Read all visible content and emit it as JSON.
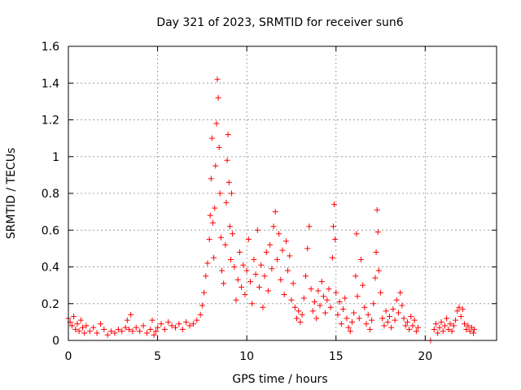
{
  "chart_data": {
    "type": "scatter",
    "title": "Day 321 of 2023, SRMTID for receiver sun6",
    "xlabel": "GPS time / hours",
    "ylabel": "SRMTID / TECUs",
    "xlim": [
      0,
      24
    ],
    "ylim": [
      0,
      1.6
    ],
    "x_ticks": [
      0,
      5,
      10,
      15,
      20
    ],
    "x_tick_labels": [
      "0",
      "5",
      "10",
      "15",
      "20"
    ],
    "y_ticks": [
      0,
      0.2,
      0.4,
      0.6,
      0.8,
      1.0,
      1.2,
      1.4,
      1.6
    ],
    "y_tick_labels": [
      "0",
      "0.2",
      "0.4",
      "0.6",
      "0.8",
      "1",
      "1.2",
      "1.4",
      "1.6"
    ],
    "grid": true,
    "marker": "+",
    "series": [
      {
        "name": "SRMTID",
        "color": "#ff0000",
        "points": [
          [
            0.0,
            0.12
          ],
          [
            0.1,
            0.1
          ],
          [
            0.2,
            0.08
          ],
          [
            0.3,
            0.13
          ],
          [
            0.4,
            0.06
          ],
          [
            0.5,
            0.09
          ],
          [
            0.6,
            0.05
          ],
          [
            0.7,
            0.11
          ],
          [
            0.8,
            0.07
          ],
          [
            0.9,
            0.04
          ],
          [
            1.0,
            0.08
          ],
          [
            1.2,
            0.05
          ],
          [
            1.4,
            0.07
          ],
          [
            1.6,
            0.04
          ],
          [
            1.8,
            0.09
          ],
          [
            2.0,
            0.06
          ],
          [
            2.2,
            0.03
          ],
          [
            2.4,
            0.05
          ],
          [
            2.6,
            0.04
          ],
          [
            2.8,
            0.06
          ],
          [
            3.0,
            0.05
          ],
          [
            3.2,
            0.07
          ],
          [
            3.3,
            0.11
          ],
          [
            3.4,
            0.06
          ],
          [
            3.5,
            0.14
          ],
          [
            3.6,
            0.05
          ],
          [
            3.8,
            0.07
          ],
          [
            4.0,
            0.05
          ],
          [
            4.2,
            0.08
          ],
          [
            4.4,
            0.04
          ],
          [
            4.6,
            0.06
          ],
          [
            4.7,
            0.11
          ],
          [
            4.8,
            0.03
          ],
          [
            4.9,
            0.05
          ],
          [
            5.0,
            0.07
          ],
          [
            5.2,
            0.09
          ],
          [
            5.4,
            0.06
          ],
          [
            5.6,
            0.1
          ],
          [
            5.8,
            0.08
          ],
          [
            6.0,
            0.07
          ],
          [
            6.2,
            0.09
          ],
          [
            6.4,
            0.06
          ],
          [
            6.6,
            0.1
          ],
          [
            6.8,
            0.08
          ],
          [
            7.0,
            0.09
          ],
          [
            7.2,
            0.11
          ],
          [
            7.4,
            0.14
          ],
          [
            7.5,
            0.19
          ],
          [
            7.6,
            0.26
          ],
          [
            7.7,
            0.35
          ],
          [
            7.8,
            0.42
          ],
          [
            7.9,
            0.55
          ],
          [
            7.95,
            0.68
          ],
          [
            8.0,
            0.88
          ],
          [
            8.05,
            1.1
          ],
          [
            8.1,
            0.64
          ],
          [
            8.15,
            0.45
          ],
          [
            8.2,
            0.72
          ],
          [
            8.25,
            0.95
          ],
          [
            8.3,
            1.18
          ],
          [
            8.35,
            1.42
          ],
          [
            8.4,
            1.32
          ],
          [
            8.45,
            1.05
          ],
          [
            8.5,
            0.8
          ],
          [
            8.55,
            0.56
          ],
          [
            8.6,
            0.38
          ],
          [
            8.7,
            0.31
          ],
          [
            8.8,
            0.52
          ],
          [
            8.85,
            0.75
          ],
          [
            8.9,
            0.98
          ],
          [
            8.95,
            1.12
          ],
          [
            9.0,
            0.86
          ],
          [
            9.05,
            0.62
          ],
          [
            9.1,
            0.44
          ],
          [
            9.15,
            0.8
          ],
          [
            9.2,
            0.58
          ],
          [
            9.3,
            0.4
          ],
          [
            9.4,
            0.22
          ],
          [
            9.5,
            0.33
          ],
          [
            9.6,
            0.48
          ],
          [
            9.7,
            0.29
          ],
          [
            9.8,
            0.41
          ],
          [
            9.9,
            0.25
          ],
          [
            10.0,
            0.38
          ],
          [
            10.1,
            0.55
          ],
          [
            10.2,
            0.32
          ],
          [
            10.3,
            0.2
          ],
          [
            10.4,
            0.44
          ],
          [
            10.5,
            0.36
          ],
          [
            10.6,
            0.6
          ],
          [
            10.7,
            0.29
          ],
          [
            10.8,
            0.41
          ],
          [
            10.9,
            0.18
          ],
          [
            11.0,
            0.35
          ],
          [
            11.1,
            0.48
          ],
          [
            11.2,
            0.27
          ],
          [
            11.3,
            0.52
          ],
          [
            11.4,
            0.39
          ],
          [
            11.5,
            0.62
          ],
          [
            11.6,
            0.7
          ],
          [
            11.7,
            0.44
          ],
          [
            11.8,
            0.58
          ],
          [
            11.9,
            0.33
          ],
          [
            12.0,
            0.49
          ],
          [
            12.1,
            0.25
          ],
          [
            12.2,
            0.54
          ],
          [
            12.3,
            0.38
          ],
          [
            12.4,
            0.46
          ],
          [
            12.5,
            0.22
          ],
          [
            12.6,
            0.31
          ],
          [
            12.7,
            0.18
          ],
          [
            12.8,
            0.12
          ],
          [
            12.9,
            0.16
          ],
          [
            13.0,
            0.1
          ],
          [
            13.1,
            0.14
          ],
          [
            13.2,
            0.23
          ],
          [
            13.3,
            0.35
          ],
          [
            13.4,
            0.5
          ],
          [
            13.5,
            0.62
          ],
          [
            13.6,
            0.28
          ],
          [
            13.7,
            0.16
          ],
          [
            13.8,
            0.21
          ],
          [
            13.9,
            0.12
          ],
          [
            14.0,
            0.27
          ],
          [
            14.1,
            0.19
          ],
          [
            14.2,
            0.32
          ],
          [
            14.3,
            0.24
          ],
          [
            14.4,
            0.15
          ],
          [
            14.5,
            0.22
          ],
          [
            14.6,
            0.28
          ],
          [
            14.7,
            0.18
          ],
          [
            14.8,
            0.45
          ],
          [
            14.85,
            0.62
          ],
          [
            14.9,
            0.74
          ],
          [
            14.95,
            0.55
          ],
          [
            15.0,
            0.26
          ],
          [
            15.1,
            0.14
          ],
          [
            15.2,
            0.21
          ],
          [
            15.3,
            0.09
          ],
          [
            15.4,
            0.17
          ],
          [
            15.5,
            0.23
          ],
          [
            15.6,
            0.12
          ],
          [
            15.7,
            0.07
          ],
          [
            15.8,
            0.05
          ],
          [
            15.9,
            0.1
          ],
          [
            16.0,
            0.15
          ],
          [
            16.1,
            0.35
          ],
          [
            16.15,
            0.58
          ],
          [
            16.2,
            0.24
          ],
          [
            16.3,
            0.12
          ],
          [
            16.4,
            0.44
          ],
          [
            16.5,
            0.3
          ],
          [
            16.6,
            0.18
          ],
          [
            16.7,
            0.09
          ],
          [
            16.8,
            0.14
          ],
          [
            16.9,
            0.06
          ],
          [
            17.0,
            0.11
          ],
          [
            17.1,
            0.2
          ],
          [
            17.2,
            0.34
          ],
          [
            17.25,
            0.48
          ],
          [
            17.3,
            0.71
          ],
          [
            17.35,
            0.59
          ],
          [
            17.4,
            0.38
          ],
          [
            17.5,
            0.26
          ],
          [
            17.6,
            0.12
          ],
          [
            17.7,
            0.08
          ],
          [
            17.8,
            0.16
          ],
          [
            17.9,
            0.1
          ],
          [
            18.0,
            0.13
          ],
          [
            18.1,
            0.07
          ],
          [
            18.2,
            0.17
          ],
          [
            18.3,
            0.11
          ],
          [
            18.4,
            0.22
          ],
          [
            18.5,
            0.15
          ],
          [
            18.6,
            0.26
          ],
          [
            18.7,
            0.19
          ],
          [
            18.8,
            0.12
          ],
          [
            18.9,
            0.08
          ],
          [
            19.0,
            0.1
          ],
          [
            19.1,
            0.06
          ],
          [
            19.2,
            0.13
          ],
          [
            19.3,
            0.08
          ],
          [
            19.4,
            0.11
          ],
          [
            19.5,
            0.05
          ],
          [
            19.6,
            0.07
          ],
          [
            20.3,
            0.0
          ],
          [
            20.5,
            0.06
          ],
          [
            20.6,
            0.09
          ],
          [
            20.7,
            0.04
          ],
          [
            20.8,
            0.07
          ],
          [
            20.9,
            0.1
          ],
          [
            21.0,
            0.05
          ],
          [
            21.1,
            0.08
          ],
          [
            21.2,
            0.12
          ],
          [
            21.3,
            0.06
          ],
          [
            21.4,
            0.09
          ],
          [
            21.5,
            0.05
          ],
          [
            21.6,
            0.08
          ],
          [
            21.7,
            0.11
          ],
          [
            21.8,
            0.16
          ],
          [
            21.9,
            0.18
          ],
          [
            22.0,
            0.13
          ],
          [
            22.1,
            0.17
          ],
          [
            22.2,
            0.09
          ],
          [
            22.3,
            0.06
          ],
          [
            22.4,
            0.08
          ],
          [
            22.5,
            0.05
          ],
          [
            22.6,
            0.07
          ],
          [
            22.7,
            0.04
          ],
          [
            22.75,
            0.06
          ]
        ]
      }
    ]
  }
}
